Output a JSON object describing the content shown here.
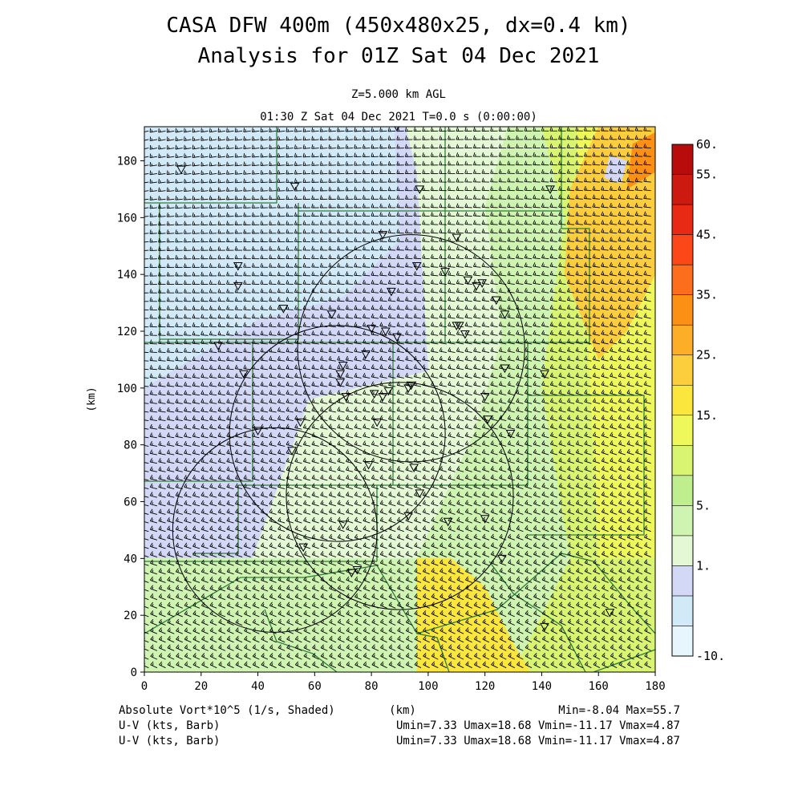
{
  "header": {
    "title_line1": "CASA DFW 400m (450x480x25, dx=0.4 km)",
    "title_line2": "Analysis for 01Z Sat 04 Dec 2021",
    "level": "Z=5.000 km AGL",
    "time": "01:30 Z Sat 04 Dec 2021   T=0.0 s (0:00:00)"
  },
  "footer": {
    "field1": "Absolute Vort*10^5 (1/s, Shaded)",
    "xunit": "(km)",
    "minmax": "Min=-8.04 Max=55.7",
    "field2": "U-V (kts, Barb)",
    "stats2": "Umin=7.33 Umax=18.68 Vmin=-11.17 Vmax=4.87",
    "field3": "U-V (kts, Barb)",
    "stats3": "Umin=7.33 Umax=18.68 Vmin=-11.17 Vmax=4.87"
  },
  "chart_data": {
    "type": "heatmap",
    "xlabel": "",
    "ylabel": "(km)",
    "xlim": [
      0,
      180
    ],
    "ylim": [
      0,
      192
    ],
    "xticks": [
      0,
      20,
      40,
      60,
      80,
      100,
      120,
      140,
      160,
      180
    ],
    "yticks": [
      0,
      20,
      40,
      60,
      80,
      100,
      120,
      140,
      160,
      180
    ],
    "colorbar": {
      "labels": [
        "60.",
        "55.",
        "45.",
        "35.",
        "25.",
        "15.",
        "5.",
        "1.",
        "-10."
      ],
      "label_levels": [
        60,
        55,
        45,
        35,
        25,
        15,
        5,
        1,
        -10
      ],
      "levels": [
        -10,
        -5,
        -1,
        1,
        3,
        5,
        8,
        10,
        15,
        20,
        25,
        30,
        35,
        40,
        45,
        50,
        55,
        60
      ],
      "colors": [
        "#e6f6fc",
        "#d2eaf8",
        "#d2d8f6",
        "#e4f8d6",
        "#cff3b0",
        "#bfee8e",
        "#d8f470",
        "#eef85a",
        "#fae63c",
        "#fccd3c",
        "#fcae28",
        "#fc9014",
        "#fc6e1c",
        "#fc4818",
        "#e82a14",
        "#cc1a10",
        "#b80c0c"
      ]
    },
    "field_regions": [
      {
        "level": "-1 to 1",
        "polygon": [
          [
            0,
            40
          ],
          [
            0,
            192
          ],
          [
            108,
            192
          ],
          [
            108,
            40
          ]
        ]
      },
      {
        "level": "1 to 3",
        "polygon": [
          [
            38,
            40
          ],
          [
            58,
            96
          ],
          [
            100,
            106
          ],
          [
            96,
            176
          ],
          [
            92,
            192
          ],
          [
            128,
            192
          ],
          [
            120,
            164
          ],
          [
            126,
            118
          ],
          [
            116,
            84
          ],
          [
            96,
            40
          ]
        ]
      },
      {
        "level": "-5 to -1",
        "polygon": [
          [
            0,
            100
          ],
          [
            0,
            192
          ],
          [
            88,
            192
          ],
          [
            90,
            152
          ],
          [
            70,
            132
          ],
          [
            40,
            124
          ]
        ]
      },
      {
        "level": "3 to 8",
        "polygon": [
          [
            0,
            0
          ],
          [
            0,
            40
          ],
          [
            96,
            40
          ],
          [
            116,
            84
          ],
          [
            126,
            118
          ],
          [
            120,
            164
          ],
          [
            128,
            192
          ],
          [
            180,
            192
          ],
          [
            180,
            0
          ]
        ]
      },
      {
        "level": "8 to 15",
        "polygon": [
          [
            130,
            0
          ],
          [
            150,
            40
          ],
          [
            140,
            100
          ],
          [
            148,
            160
          ],
          [
            140,
            192
          ],
          [
            180,
            192
          ],
          [
            180,
            0
          ]
        ]
      },
      {
        "level": "10 to 15",
        "polygon": [
          [
            160,
            40
          ],
          [
            156,
            120
          ],
          [
            152,
            192
          ],
          [
            180,
            192
          ],
          [
            180,
            40
          ]
        ]
      },
      {
        "level": "20 to 25",
        "polygon": [
          [
            148,
            140
          ],
          [
            150,
            170
          ],
          [
            160,
            192
          ],
          [
            180,
            192
          ],
          [
            180,
            140
          ],
          [
            170,
            120
          ],
          [
            160,
            110
          ]
        ]
      },
      {
        "level": "15 to 30",
        "polygon": [
          [
            96,
            0
          ],
          [
            96,
            40
          ],
          [
            108,
            40
          ],
          [
            120,
            30
          ],
          [
            130,
            10
          ],
          [
            136,
            0
          ]
        ]
      },
      {
        "level": "30+",
        "polygon": [
          [
            170,
            170
          ],
          [
            172,
            186
          ],
          [
            180,
            190
          ],
          [
            180,
            176
          ]
        ]
      },
      {
        "level": "-1 to 1 (patch)",
        "polygon": [
          [
            162,
            174
          ],
          [
            164,
            182
          ],
          [
            170,
            180
          ],
          [
            168,
            172
          ]
        ]
      }
    ],
    "barb_field": {
      "u_range": [
        7.33,
        18.68
      ],
      "v_range": [
        -11.17,
        4.87
      ],
      "units": "kts"
    },
    "radar_range_rings": [
      {
        "center": [
          94,
          114
        ],
        "radius": 40
      },
      {
        "center": [
          68,
          84
        ],
        "radius": 38
      },
      {
        "center": [
          90,
          62
        ],
        "radius": 40
      },
      {
        "center": [
          46,
          50
        ],
        "radius": 36
      }
    ],
    "station_markers": [
      [
        13,
        177
      ],
      [
        53,
        171
      ],
      [
        97,
        170
      ],
      [
        143,
        170
      ],
      [
        33,
        143
      ],
      [
        33,
        136
      ],
      [
        49,
        128
      ],
      [
        66,
        126
      ],
      [
        84,
        154
      ],
      [
        96,
        143
      ],
      [
        87,
        134
      ],
      [
        110,
        153
      ],
      [
        111,
        122
      ],
      [
        113,
        119
      ],
      [
        106,
        141
      ],
      [
        114,
        138
      ],
      [
        117,
        136
      ],
      [
        119,
        137
      ],
      [
        124,
        131
      ],
      [
        127,
        126
      ],
      [
        110,
        122
      ],
      [
        80,
        121
      ],
      [
        85,
        120
      ],
      [
        89,
        118
      ],
      [
        78,
        112
      ],
      [
        69,
        105
      ],
      [
        69,
        102
      ],
      [
        70,
        108
      ],
      [
        71,
        97
      ],
      [
        81,
        98
      ],
      [
        84,
        97
      ],
      [
        86,
        99
      ],
      [
        94,
        101
      ],
      [
        93,
        100
      ],
      [
        120,
        97
      ],
      [
        127,
        107
      ],
      [
        141,
        105
      ],
      [
        121,
        89
      ],
      [
        129,
        84
      ],
      [
        82,
        88
      ],
      [
        40,
        85
      ],
      [
        55,
        88
      ],
      [
        52,
        78
      ],
      [
        79,
        73
      ],
      [
        95,
        72
      ],
      [
        97,
        63
      ],
      [
        93,
        55
      ],
      [
        70,
        52
      ],
      [
        107,
        53
      ],
      [
        120,
        54
      ],
      [
        56,
        44
      ],
      [
        73,
        35
      ],
      [
        75,
        36
      ],
      [
        126,
        40
      ],
      [
        141,
        16
      ],
      [
        164,
        21
      ],
      [
        89,
        192
      ],
      [
        26,
        115
      ],
      [
        35,
        105
      ]
    ]
  }
}
